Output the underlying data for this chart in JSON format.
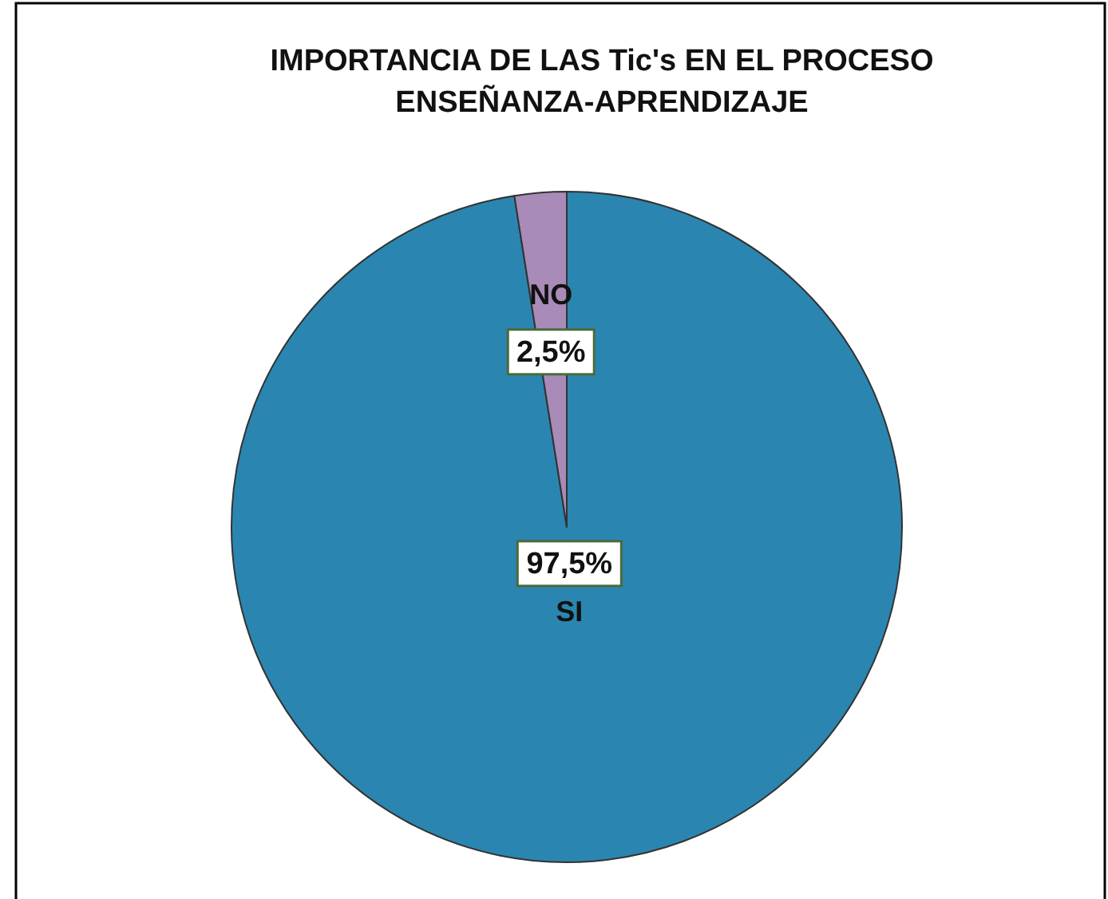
{
  "chart_data": {
    "type": "pie",
    "title": "IMPORTANCIA DE LAS Tic's EN EL PROCESO ENSEÑANZA-APRENDIZAJE",
    "categories": [
      "SI",
      "NO"
    ],
    "values": [
      97.5,
      2.5
    ],
    "colors": [
      "#2a86b0",
      "#a88bb8"
    ],
    "value_labels": [
      "97,5%",
      "2,5%"
    ],
    "legend": false
  }
}
